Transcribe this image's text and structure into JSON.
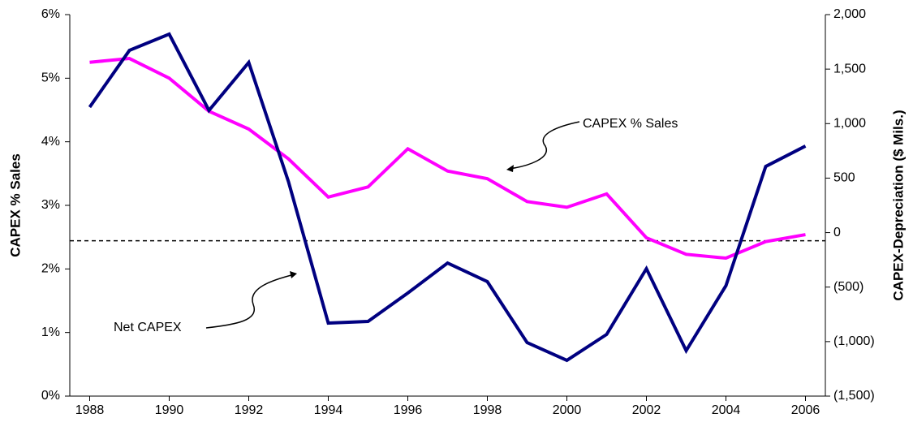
{
  "chart_data": {
    "type": "line",
    "x": [
      1988,
      1989,
      1990,
      1991,
      1992,
      1993,
      1994,
      1995,
      1996,
      1997,
      1998,
      1999,
      2000,
      2001,
      2002,
      2003,
      2004,
      2005,
      2006
    ],
    "xlim": [
      1987.5,
      2006.5
    ],
    "xticks": [
      1988,
      1990,
      1992,
      1994,
      1996,
      1998,
      2000,
      2002,
      2004,
      2006
    ],
    "y_label": "CAPEX % Sales",
    "y2_label": "CAPEX-Depreciation ($ Mils.)",
    "ylim": [
      0,
      6
    ],
    "yticks": [
      {
        "value": 0,
        "label": "0%"
      },
      {
        "value": 1,
        "label": "1%"
      },
      {
        "value": 2,
        "label": "2%"
      },
      {
        "value": 3,
        "label": "3%"
      },
      {
        "value": 4,
        "label": "4%"
      },
      {
        "value": 5,
        "label": "5%"
      },
      {
        "value": 6,
        "label": "6%"
      }
    ],
    "y2lim": [
      -1500,
      2000
    ],
    "y2ticks": [
      {
        "value": -1500,
        "label": "(1,500)"
      },
      {
        "value": -1000,
        "label": "(1,000)"
      },
      {
        "value": -500,
        "label": "(500)"
      },
      0,
      500,
      {
        "value": 1000,
        "label": "1,000"
      },
      {
        "value": 1500,
        "label": "1,500"
      },
      {
        "value": 2000,
        "label": "2,000"
      }
    ],
    "reference_line": {
      "axis": "y2",
      "value": -75,
      "color": "#000000"
    },
    "annotations": [
      "CAPEX % Sales",
      "Net CAPEX"
    ],
    "series": [
      {
        "name": "CAPEX % Sales",
        "color": "#ff00ff",
        "values": [
          5.25,
          5.31,
          5.0,
          4.48,
          4.2,
          3.73,
          3.13,
          3.29,
          3.89,
          3.54,
          3.42,
          3.06,
          2.97,
          3.18,
          2.49,
          2.23,
          2.17,
          2.43,
          2.54
        ]
      },
      {
        "name": "Net CAPEX",
        "color": "#000080",
        "axis": "y2",
        "values": [
          1151,
          1672,
          1821,
          1121,
          1561,
          466,
          -830,
          -815,
          -554,
          -279,
          -450,
          -1009,
          -1172,
          -934,
          -331,
          -1083,
          -487,
          607,
          794
        ]
      }
    ]
  }
}
